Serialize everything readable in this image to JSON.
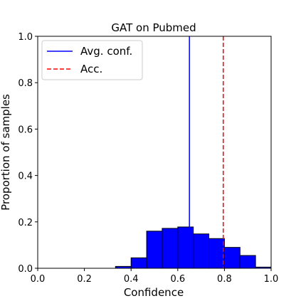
{
  "chart_data": {
    "type": "bar",
    "title": "GAT on Pubmed",
    "xlabel": "Confidence",
    "ylabel": "Proportion of samples",
    "xlim": [
      0.0,
      1.0
    ],
    "ylim": [
      0.0,
      1.0
    ],
    "xticks": [
      "0.0",
      "0.2",
      "0.4",
      "0.6",
      "0.8",
      "1.0"
    ],
    "yticks": [
      "0.0",
      "0.2",
      "0.4",
      "0.6",
      "0.8",
      "1.0"
    ],
    "bin_edges": [
      0.3333,
      0.4,
      0.4667,
      0.5333,
      0.6,
      0.6667,
      0.7333,
      0.8,
      0.8667,
      0.9333,
      1.0
    ],
    "values": [
      0.008,
      0.045,
      0.16,
      0.172,
      0.178,
      0.148,
      0.128,
      0.09,
      0.055,
      0.005
    ],
    "bar_color": "#0000ff",
    "grid": false,
    "legend_position": "top-left",
    "lines": [
      {
        "name": "Avg. conf.",
        "x": 0.65,
        "color": "#0000ff",
        "style": "solid"
      },
      {
        "name": "Acc.",
        "x": 0.795,
        "color": "#ff0000",
        "style": "dashed"
      }
    ]
  }
}
